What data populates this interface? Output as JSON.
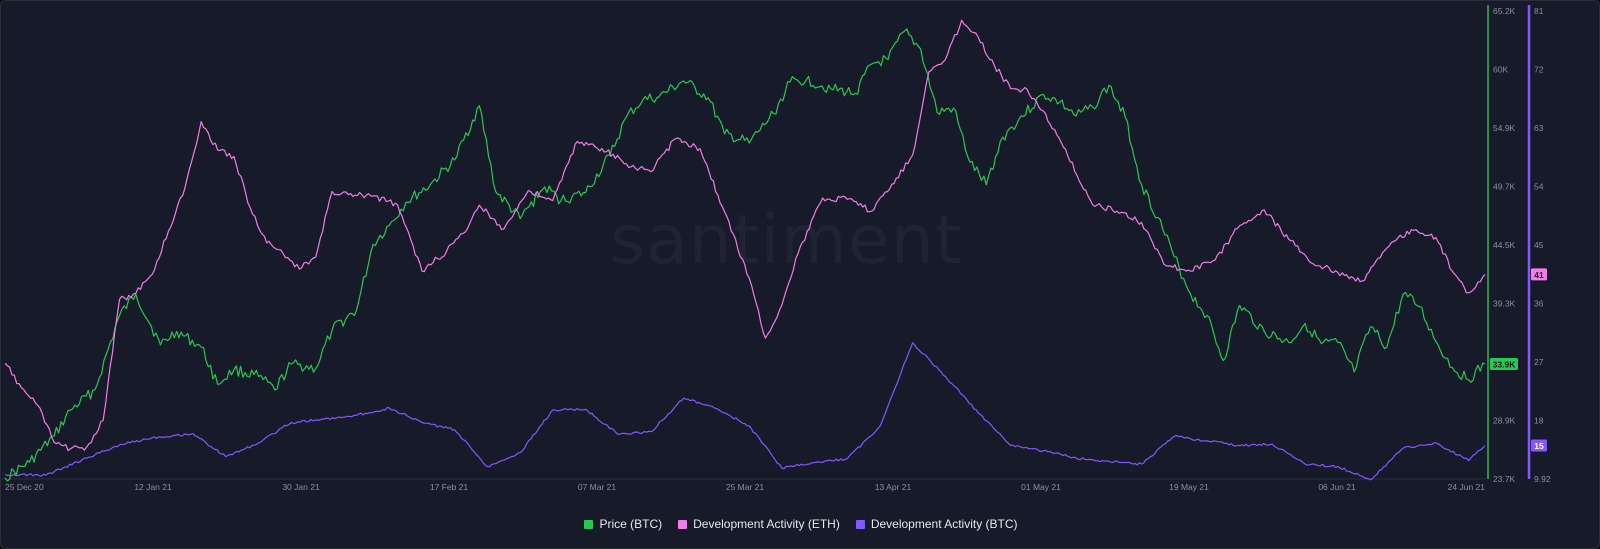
{
  "watermark": "santiment",
  "colors": {
    "price": "#26c953",
    "dev_eth": "#f17de6",
    "dev_btc": "#8358ff",
    "axis_text": "#8b8fa3",
    "grid": "#232739",
    "background": "#171a28"
  },
  "legend": [
    {
      "label": "Price (BTC)",
      "color": "#26c953"
    },
    {
      "label": "Development Activity (ETH)",
      "color": "#f17de6"
    },
    {
      "label": "Development Activity (BTC)",
      "color": "#8358ff"
    }
  ],
  "chart_data": {
    "type": "line",
    "x_ticks": [
      "25 Dec 20",
      "12 Jan 21",
      "30 Jan 21",
      "17 Feb 21",
      "07 Mar 21",
      "25 Mar 21",
      "13 Apr 21",
      "01 May 21",
      "19 May 21",
      "06 Jun 21",
      "24 Jun 21"
    ],
    "x_range": [
      "2020-12-25",
      "2021-06-24"
    ],
    "price_axis": {
      "ticks": [
        "65.2K",
        "60K",
        "54.9K",
        "49.7K",
        "44.5K",
        "39.3K",
        "34.1K",
        "28.9K",
        "23.7K"
      ],
      "range": [
        23.7,
        65.2
      ],
      "current_label": "33.9K"
    },
    "dev_axis": {
      "ticks": [
        "81",
        "72",
        "63",
        "54",
        "45",
        "36",
        "27",
        "18",
        "9.92"
      ],
      "range": [
        9.92,
        81
      ],
      "current_labels": [
        "41",
        "15"
      ]
    },
    "series": [
      {
        "name": "Price (BTC)",
        "axis": "price",
        "x": [
          "2020-12-25",
          "2020-12-28",
          "2020-12-31",
          "2021-01-02",
          "2021-01-05",
          "2021-01-08",
          "2021-01-10",
          "2021-01-13",
          "2021-01-15",
          "2021-01-18",
          "2021-01-20",
          "2021-01-22",
          "2021-01-25",
          "2021-01-27",
          "2021-01-29",
          "2021-02-01",
          "2021-02-03",
          "2021-02-06",
          "2021-02-08",
          "2021-02-10",
          "2021-02-12",
          "2021-02-15",
          "2021-02-18",
          "2021-02-21",
          "2021-02-23",
          "2021-02-26",
          "2021-03-01",
          "2021-03-03",
          "2021-03-06",
          "2021-03-09",
          "2021-03-11",
          "2021-03-13",
          "2021-03-15",
          "2021-03-18",
          "2021-03-21",
          "2021-03-23",
          "2021-03-26",
          "2021-03-29",
          "2021-03-31",
          "2021-04-02",
          "2021-04-05",
          "2021-04-08",
          "2021-04-10",
          "2021-04-12",
          "2021-04-14",
          "2021-04-16",
          "2021-04-18",
          "2021-04-20",
          "2021-04-22",
          "2021-04-24",
          "2021-04-26",
          "2021-04-28",
          "2021-05-01",
          "2021-05-03",
          "2021-05-05",
          "2021-05-07",
          "2021-05-09",
          "2021-05-11",
          "2021-05-13",
          "2021-05-15",
          "2021-05-17",
          "2021-05-19",
          "2021-05-21",
          "2021-05-23",
          "2021-05-25",
          "2021-05-28",
          "2021-05-31",
          "2021-06-02",
          "2021-06-04",
          "2021-06-06",
          "2021-06-08",
          "2021-06-10",
          "2021-06-12",
          "2021-06-14",
          "2021-06-16",
          "2021-06-18",
          "2021-06-20",
          "2021-06-22",
          "2021-06-24"
        ],
        "values": [
          23.8,
          25.2,
          27.5,
          29.8,
          31.6,
          38.2,
          40.1,
          35.6,
          36.8,
          35.4,
          32.1,
          33.4,
          32.8,
          31.6,
          33.9,
          33.5,
          36.9,
          38.7,
          44.5,
          46.2,
          48.2,
          49.8,
          52.0,
          56.8,
          49.2,
          46.8,
          49.6,
          48.4,
          49.1,
          52.4,
          55.8,
          57.3,
          57.6,
          59.0,
          57.5,
          54.3,
          53.5,
          56.1,
          58.9,
          59.1,
          58.3,
          57.9,
          60.5,
          60.9,
          63.4,
          61.8,
          56.2,
          56.6,
          51.8,
          49.8,
          54.0,
          55.6,
          57.8,
          57.1,
          55.9,
          56.7,
          58.6,
          55.8,
          49.8,
          46.9,
          43.4,
          40.1,
          38.2,
          34.2,
          39.1,
          36.8,
          35.8,
          37.5,
          35.7,
          35.8,
          33.2,
          37.2,
          35.4,
          40.1,
          39.0,
          35.9,
          33.6,
          32.5,
          33.9
        ]
      },
      {
        "name": "Development Activity (ETH)",
        "axis": "dev",
        "x": [
          "2020-12-25",
          "2020-12-27",
          "2020-12-29",
          "2020-12-31",
          "2021-01-02",
          "2021-01-04",
          "2021-01-06",
          "2021-01-08",
          "2021-01-10",
          "2021-01-12",
          "2021-01-14",
          "2021-01-16",
          "2021-01-18",
          "2021-01-20",
          "2021-01-22",
          "2021-01-24",
          "2021-01-26",
          "2021-01-28",
          "2021-01-30",
          "2021-02-01",
          "2021-02-03",
          "2021-02-05",
          "2021-02-08",
          "2021-02-11",
          "2021-02-14",
          "2021-02-17",
          "2021-02-19",
          "2021-02-21",
          "2021-02-24",
          "2021-02-27",
          "2021-03-02",
          "2021-03-05",
          "2021-03-08",
          "2021-03-11",
          "2021-03-14",
          "2021-03-17",
          "2021-03-20",
          "2021-03-23",
          "2021-03-26",
          "2021-03-28",
          "2021-03-30",
          "2021-04-01",
          "2021-04-04",
          "2021-04-07",
          "2021-04-10",
          "2021-04-13",
          "2021-04-15",
          "2021-04-17",
          "2021-04-19",
          "2021-04-21",
          "2021-04-23",
          "2021-04-25",
          "2021-04-27",
          "2021-04-29",
          "2021-05-01",
          "2021-05-04",
          "2021-05-07",
          "2021-05-10",
          "2021-05-13",
          "2021-05-16",
          "2021-05-19",
          "2021-05-22",
          "2021-05-25",
          "2021-05-28",
          "2021-05-31",
          "2021-06-03",
          "2021-06-06",
          "2021-06-09",
          "2021-06-12",
          "2021-06-15",
          "2021-06-18",
          "2021-06-20",
          "2021-06-22",
          "2021-06-24"
        ],
        "values": [
          27.5,
          23.8,
          21.1,
          15.5,
          14.5,
          14.8,
          18.8,
          37.2,
          38.1,
          41.0,
          47.6,
          54.1,
          64.2,
          59.9,
          58.9,
          51.1,
          45.8,
          44.2,
          41.8,
          43.6,
          53.6,
          53.1,
          52.9,
          51.6,
          41.5,
          44.5,
          47.2,
          51.5,
          47.9,
          53.7,
          52.2,
          61.2,
          60.1,
          57.8,
          56.6,
          61.6,
          60.1,
          50.5,
          40.5,
          31.3,
          36.3,
          44.2,
          52.6,
          52.4,
          50.6,
          55.6,
          59.1,
          71.8,
          73.6,
          79.6,
          77.1,
          72.7,
          69.2,
          69.1,
          65.8,
          58.9,
          51.6,
          50.6,
          48.9,
          42.3,
          41.5,
          43.2,
          48.4,
          50.8,
          46.3,
          42.6,
          41.3,
          40.0,
          45.0,
          47.8,
          46.6,
          41.5,
          38.2,
          41.0
        ]
      },
      {
        "name": "Development Activity (BTC)",
        "axis": "dev",
        "x": [
          "2020-12-25",
          "2020-12-30",
          "2021-01-04",
          "2021-01-08",
          "2021-01-12",
          "2021-01-17",
          "2021-01-21",
          "2021-01-25",
          "2021-01-29",
          "2021-02-02",
          "2021-02-06",
          "2021-02-10",
          "2021-02-14",
          "2021-02-18",
          "2021-02-22",
          "2021-02-26",
          "2021-03-02",
          "2021-03-06",
          "2021-03-10",
          "2021-03-14",
          "2021-03-18",
          "2021-03-22",
          "2021-03-26",
          "2021-03-30",
          "2021-04-03",
          "2021-04-07",
          "2021-04-11",
          "2021-04-15",
          "2021-04-19",
          "2021-04-23",
          "2021-04-27",
          "2021-05-01",
          "2021-05-05",
          "2021-05-09",
          "2021-05-13",
          "2021-05-17",
          "2021-05-21",
          "2021-05-25",
          "2021-05-29",
          "2021-06-02",
          "2021-06-06",
          "2021-06-10",
          "2021-06-14",
          "2021-06-18",
          "2021-06-22",
          "2021-06-24"
        ],
        "values": [
          10.6,
          10.5,
          13.1,
          15.1,
          16.2,
          16.8,
          13.3,
          15.4,
          18.5,
          19.0,
          19.6,
          20.7,
          18.5,
          17.4,
          11.8,
          13.9,
          20.4,
          20.5,
          16.7,
          17.1,
          22.2,
          20.6,
          18.0,
          11.6,
          12.4,
          13.0,
          17.9,
          30.6,
          25.5,
          20.0,
          15.0,
          14.2,
          13.1,
          12.6,
          12.2,
          16.4,
          15.7,
          15.0,
          15.2,
          12.2,
          11.8,
          9.8,
          14.6,
          15.4,
          12.7,
          15.0
        ]
      }
    ],
    "grid": false,
    "legend_position": "bottom-center"
  }
}
